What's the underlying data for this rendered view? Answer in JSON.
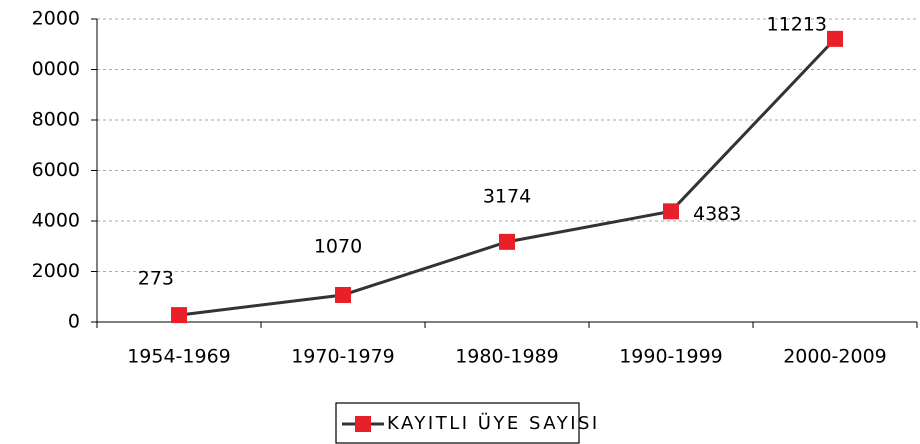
{
  "chart_data": {
    "type": "line",
    "categories": [
      "1954-1969",
      "1970-1979",
      "1980-1989",
      "1990-1999",
      "2000-2009"
    ],
    "series": [
      {
        "name": "KAYITLI ÜYE SAYISI",
        "color": "#333333",
        "marker_color": "#e8202a",
        "values": [
          273,
          1070,
          3174,
          4383,
          11213
        ]
      }
    ],
    "ylim": [
      0,
      12000
    ],
    "yticks": [
      0,
      2000,
      4000,
      6000,
      8000,
      {
        "value": 10000,
        "label": "0000"
      },
      {
        "value": 12000,
        "label": "2000"
      }
    ],
    "grid": true,
    "legend": "bottom"
  }
}
